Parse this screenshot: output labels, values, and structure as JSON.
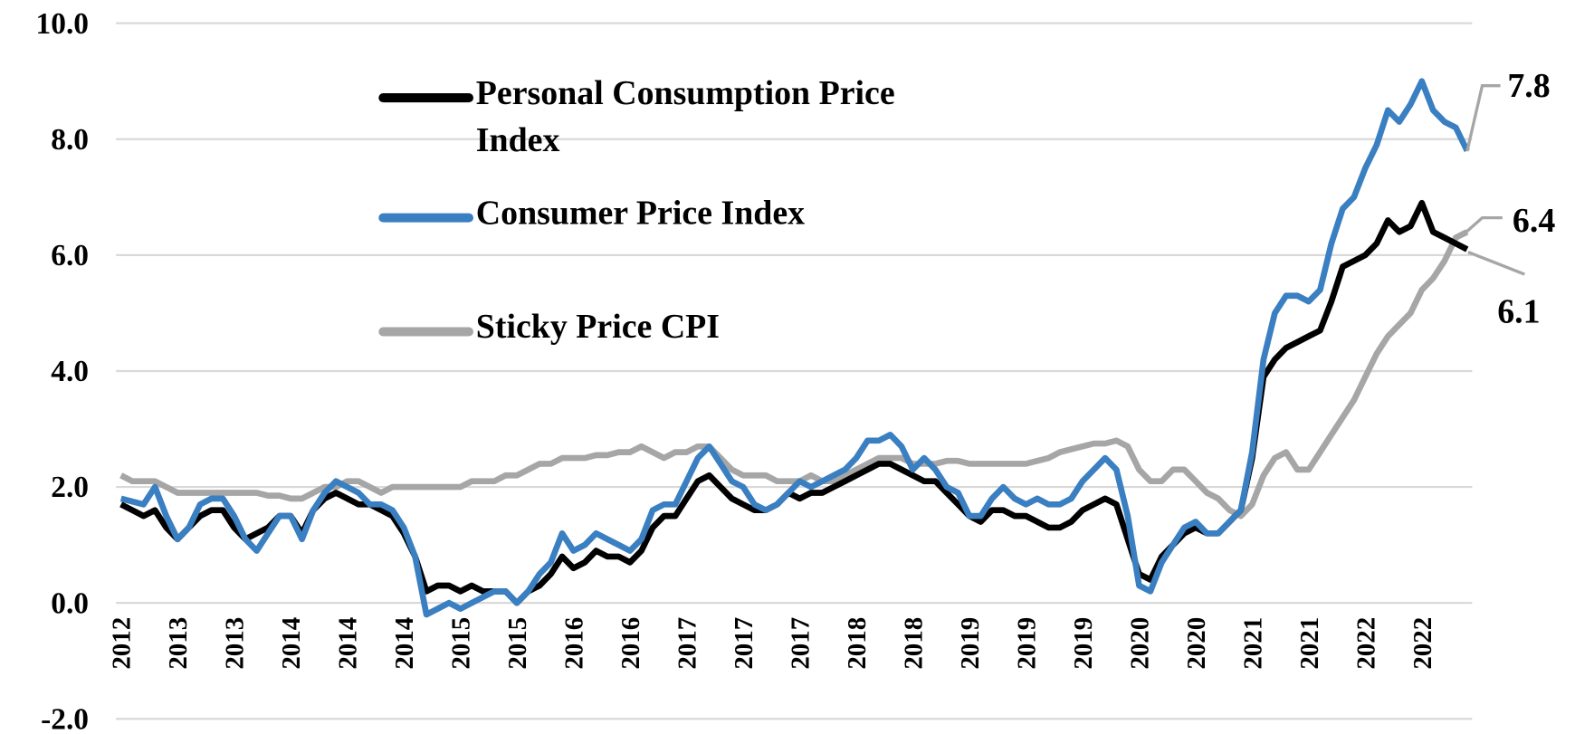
{
  "chart_data": {
    "type": "line",
    "categories": [
      "2012",
      null,
      null,
      null,
      null,
      "2013",
      null,
      null,
      null,
      null,
      "2013",
      null,
      null,
      null,
      null,
      "2014",
      null,
      null,
      null,
      null,
      "2014",
      null,
      null,
      null,
      null,
      "2014",
      null,
      null,
      null,
      null,
      "2015",
      null,
      null,
      null,
      null,
      "2015",
      null,
      null,
      null,
      null,
      "2016",
      null,
      null,
      null,
      null,
      "2016",
      null,
      null,
      null,
      null,
      "2017",
      null,
      null,
      null,
      null,
      "2017",
      null,
      null,
      null,
      null,
      "2017",
      null,
      null,
      null,
      null,
      "2018",
      null,
      null,
      null,
      null,
      "2018",
      null,
      null,
      null,
      null,
      "2019",
      null,
      null,
      null,
      null,
      "2019",
      null,
      null,
      null,
      null,
      "2019",
      null,
      null,
      null,
      null,
      "2020",
      null,
      null,
      null,
      null,
      "2020",
      null,
      null,
      null,
      null,
      "2021",
      null,
      null,
      null,
      null,
      "2021",
      null,
      null,
      null,
      null,
      "2022",
      null,
      null,
      null,
      null,
      "2022",
      null,
      null,
      null,
      null
    ],
    "series": [
      {
        "name": "Personal Consumption Price Index",
        "color": "#000000",
        "values": [
          1.7,
          1.6,
          1.5,
          1.6,
          1.3,
          1.1,
          1.3,
          1.5,
          1.6,
          1.6,
          1.3,
          1.1,
          1.2,
          1.3,
          1.5,
          1.5,
          1.2,
          1.6,
          1.8,
          1.9,
          1.8,
          1.7,
          1.7,
          1.6,
          1.5,
          1.2,
          0.8,
          0.2,
          0.3,
          0.3,
          0.2,
          0.3,
          0.2,
          0.2,
          0.2,
          0.0,
          0.2,
          0.3,
          0.5,
          0.8,
          0.6,
          0.7,
          0.9,
          0.8,
          0.8,
          0.7,
          0.9,
          1.3,
          1.5,
          1.5,
          1.8,
          2.1,
          2.2,
          2.0,
          1.8,
          1.7,
          1.6,
          1.6,
          1.7,
          1.9,
          1.8,
          1.9,
          1.9,
          2.0,
          2.1,
          2.2,
          2.3,
          2.4,
          2.4,
          2.3,
          2.2,
          2.1,
          2.1,
          1.9,
          1.7,
          1.5,
          1.4,
          1.6,
          1.6,
          1.5,
          1.5,
          1.4,
          1.3,
          1.3,
          1.4,
          1.6,
          1.7,
          1.8,
          1.7,
          1.1,
          0.5,
          0.4,
          0.8,
          1.0,
          1.2,
          1.3,
          1.2,
          1.2,
          1.4,
          1.6,
          2.5,
          3.9,
          4.2,
          4.4,
          4.5,
          4.6,
          4.7,
          5.2,
          5.8,
          5.9,
          6.0,
          6.2,
          6.6,
          6.4,
          6.5,
          6.9,
          6.4,
          6.3,
          6.2,
          6.1
        ]
      },
      {
        "name": "Consumer Price Index",
        "color": "#3a7fc1",
        "values": [
          1.8,
          1.75,
          1.7,
          2.0,
          1.5,
          1.1,
          1.3,
          1.7,
          1.8,
          1.8,
          1.5,
          1.1,
          0.9,
          1.2,
          1.5,
          1.5,
          1.1,
          1.6,
          1.9,
          2.1,
          2.0,
          1.9,
          1.7,
          1.7,
          1.6,
          1.3,
          0.8,
          -0.2,
          -0.1,
          0.0,
          -0.1,
          0.0,
          0.1,
          0.2,
          0.2,
          0.0,
          0.2,
          0.5,
          0.7,
          1.2,
          0.9,
          1.0,
          1.2,
          1.1,
          1.0,
          0.9,
          1.1,
          1.6,
          1.7,
          1.7,
          2.1,
          2.5,
          2.7,
          2.4,
          2.1,
          2.0,
          1.7,
          1.6,
          1.7,
          1.9,
          2.1,
          2.0,
          2.1,
          2.2,
          2.3,
          2.5,
          2.8,
          2.8,
          2.9,
          2.7,
          2.3,
          2.5,
          2.3,
          2.0,
          1.9,
          1.5,
          1.5,
          1.8,
          2.0,
          1.8,
          1.7,
          1.8,
          1.7,
          1.7,
          1.8,
          2.1,
          2.3,
          2.5,
          2.3,
          1.5,
          0.3,
          0.2,
          0.7,
          1.0,
          1.3,
          1.4,
          1.2,
          1.2,
          1.4,
          1.6,
          2.6,
          4.2,
          5.0,
          5.3,
          5.3,
          5.2,
          5.4,
          6.2,
          6.8,
          7.0,
          7.5,
          7.9,
          8.5,
          8.3,
          8.6,
          9.0,
          8.5,
          8.3,
          8.2,
          7.8
        ]
      },
      {
        "name": "Sticky Price CPI",
        "color": "#a6a6a6",
        "values": [
          2.2,
          2.1,
          2.1,
          2.1,
          2.0,
          1.9,
          1.9,
          1.9,
          1.9,
          1.9,
          1.9,
          1.9,
          1.9,
          1.85,
          1.85,
          1.8,
          1.8,
          1.9,
          2.0,
          2.0,
          2.1,
          2.1,
          2.0,
          1.9,
          2.0,
          2.0,
          2.0,
          2.0,
          2.0,
          2.0,
          2.0,
          2.1,
          2.1,
          2.1,
          2.2,
          2.2,
          2.3,
          2.4,
          2.4,
          2.5,
          2.5,
          2.5,
          2.55,
          2.55,
          2.6,
          2.6,
          2.7,
          2.6,
          2.5,
          2.6,
          2.6,
          2.7,
          2.7,
          2.5,
          2.3,
          2.2,
          2.2,
          2.2,
          2.1,
          2.1,
          2.1,
          2.2,
          2.1,
          2.1,
          2.2,
          2.3,
          2.4,
          2.5,
          2.5,
          2.5,
          2.4,
          2.4,
          2.4,
          2.45,
          2.45,
          2.4,
          2.4,
          2.4,
          2.4,
          2.4,
          2.4,
          2.45,
          2.5,
          2.6,
          2.65,
          2.7,
          2.75,
          2.75,
          2.8,
          2.7,
          2.3,
          2.1,
          2.1,
          2.3,
          2.3,
          2.1,
          1.9,
          1.8,
          1.6,
          1.5,
          1.7,
          2.2,
          2.5,
          2.6,
          2.3,
          2.3,
          2.6,
          2.9,
          3.2,
          3.5,
          3.9,
          4.3,
          4.6,
          4.8,
          5.0,
          5.4,
          5.6,
          5.9,
          6.3,
          6.4
        ]
      }
    ],
    "ylim": [
      -2,
      10
    ],
    "yticks": [
      {
        "value": -2,
        "label": "-2.0"
      },
      {
        "value": 0,
        "label": "0.0"
      },
      {
        "value": 2,
        "label": "2.0"
      },
      {
        "value": 4,
        "label": "4.0"
      },
      {
        "value": 6,
        "label": "6.0"
      },
      {
        "value": 8,
        "label": "8.0"
      },
      {
        "value": 10,
        "label": "10.0"
      }
    ],
    "grid": true,
    "legend": "top-left"
  }
}
